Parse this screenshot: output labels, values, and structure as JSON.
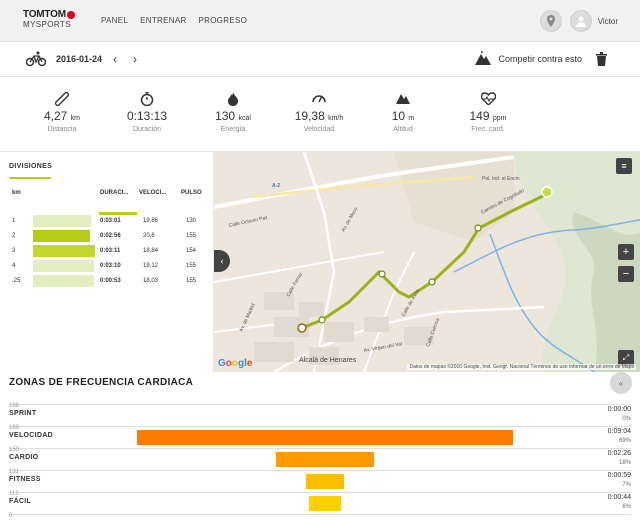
{
  "brand": {
    "name": "TOMTOM",
    "sub": "MYSPORTS",
    "accent": "#e1001a"
  },
  "nav": {
    "items": [
      "PANEL",
      "ENTRENAR",
      "PROGRESO"
    ],
    "user": "Victor"
  },
  "activity": {
    "date": "2016-01-24",
    "compete_label": "Competir contra esto",
    "sport_icon": "bicycle-icon"
  },
  "stats": [
    {
      "value": "4,27",
      "unit": "km",
      "label": "Distancia",
      "icon": "ruler-icon"
    },
    {
      "value": "0:13:13",
      "unit": "",
      "label": "Duración",
      "icon": "stopwatch-icon"
    },
    {
      "value": "130",
      "unit": "kcal",
      "label": "Energía",
      "icon": "flame-icon"
    },
    {
      "value": "19,38",
      "unit": "km/h",
      "label": "Velocidad",
      "icon": "speedometer-icon"
    },
    {
      "value": "10",
      "unit": "m",
      "label": "Altitud",
      "icon": "mountain-icon"
    },
    {
      "value": "149",
      "unit": "ppm",
      "label": "Frec. card.",
      "icon": "heart-icon"
    }
  ],
  "divisions": {
    "title": "DIVISIONES",
    "headers": [
      "km",
      "DURACI...",
      "VELOCI...",
      "PULSO"
    ],
    "rows": [
      {
        "km": "1",
        "duration": "0:03:01",
        "speed": "19,86",
        "pulse": "130",
        "bar_fraction": 0.94,
        "color": "#e4edc0"
      },
      {
        "km": "2",
        "duration": "0:02:56",
        "speed": "20,6",
        "pulse": "155",
        "bar_fraction": 0.92,
        "color": "#b5cc18"
      },
      {
        "km": "3",
        "duration": "0:03:11",
        "speed": "18,84",
        "pulse": "154",
        "bar_fraction": 1.0,
        "color": "#c2d62f"
      },
      {
        "km": "4",
        "duration": "0:03:10",
        "speed": "19,12",
        "pulse": "155",
        "bar_fraction": 0.99,
        "color": "#e4edc0"
      },
      {
        "km": ",25",
        "duration": "0:00:53",
        "speed": "18,03",
        "pulse": "155",
        "bar_fraction": 0.98,
        "color": "#e4edc0"
      }
    ]
  },
  "map": {
    "attribution": "Datos de mapas ©2016 Google, Inst. Geogr. Nacional   Términos de uso   Informar de un error de Maps",
    "labels": [
      "Pol. Ind. el Encin",
      "Camino de Cogolludo",
      "Av. de Meco",
      "Calle Octavio Paz",
      "Calle Ferraz",
      "Alcalá de Henares",
      "Av. Virgen del Val",
      "Calle Cuenca",
      "Calle de Ávila",
      "Av. de Madrid",
      "A-2"
    ],
    "google_letters": [
      "G",
      "o",
      "o",
      "g",
      "l",
      "e"
    ]
  },
  "hr_zones": {
    "title": "ZONAS DE FRECUENCIA CARDIACA",
    "bpm_marks": [
      "188",
      "169",
      "150",
      "131",
      "112",
      "0"
    ],
    "zones": [
      {
        "name": "SPRINT",
        "time": "0:00:00",
        "pct": "0%",
        "fraction": 0.0,
        "color": "#ff8000"
      },
      {
        "name": "VELOCIDAD",
        "time": "0:09:04",
        "pct": "69%",
        "fraction": 0.69,
        "color": "#ff7b00"
      },
      {
        "name": "CARDIO",
        "time": "0:02:26",
        "pct": "18%",
        "fraction": 0.18,
        "color": "#ff9a00"
      },
      {
        "name": "FITNESS",
        "time": "0:00:59",
        "pct": "7%",
        "fraction": 0.07,
        "color": "#ffbf00"
      },
      {
        "name": "FÁCIL",
        "time": "0:00:44",
        "pct": "6%",
        "fraction": 0.06,
        "color": "#ffd000"
      }
    ]
  }
}
